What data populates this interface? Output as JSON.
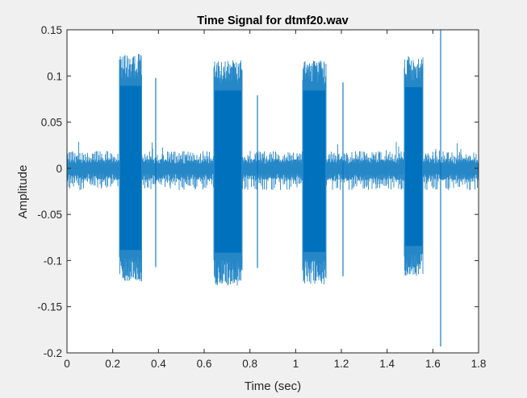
{
  "figure": {
    "background": "#f0f0f0",
    "axes_background": "#ffffff",
    "axes_color": "#262626",
    "line_color": "#0072bd"
  },
  "chart_data": {
    "type": "line",
    "title": "Time Signal for dtmf20.wav",
    "xlabel": "Time (sec)",
    "ylabel": "Amplitude",
    "xlim": [
      0,
      1.8
    ],
    "ylim": [
      -0.2,
      0.15
    ],
    "xticks": [
      0,
      0.2,
      0.4,
      0.6,
      0.8,
      1.0,
      1.2,
      1.4,
      1.6,
      1.8
    ],
    "xtick_labels": [
      "0",
      "0.2",
      "0.4",
      "0.6",
      "0.8",
      "1",
      "1.2",
      "1.4",
      "1.6",
      "1.8"
    ],
    "yticks": [
      0.15,
      0.1,
      0.05,
      0,
      -0.05,
      -0.1,
      -0.15,
      -0.2
    ],
    "ytick_labels": [
      "0.15",
      "0.1",
      "0.05",
      "0",
      "-0.05",
      "-0.1",
      "-0.15",
      "-0.2"
    ],
    "grid": false,
    "legend": null,
    "baseline_noise_amplitude": 0.017,
    "tone_bursts": [
      {
        "start": 0.229,
        "end": 0.328,
        "peak_pos": 0.124,
        "peak_neg": -0.123
      },
      {
        "start": 0.642,
        "end": 0.766,
        "peak_pos": 0.117,
        "peak_neg": -0.127
      },
      {
        "start": 1.03,
        "end": 1.133,
        "peak_pos": 0.117,
        "peak_neg": -0.126
      },
      {
        "start": 1.475,
        "end": 1.557,
        "peak_pos": 0.122,
        "peak_neg": -0.117
      }
    ],
    "spikes": [
      {
        "t": 0.388,
        "max": 0.098,
        "min": -0.107
      },
      {
        "t": 0.833,
        "max": 0.079,
        "min": -0.108
      },
      {
        "t": 1.207,
        "max": 0.093,
        "min": -0.117
      },
      {
        "t": 1.634,
        "max": 0.15,
        "min": -0.193
      }
    ]
  }
}
